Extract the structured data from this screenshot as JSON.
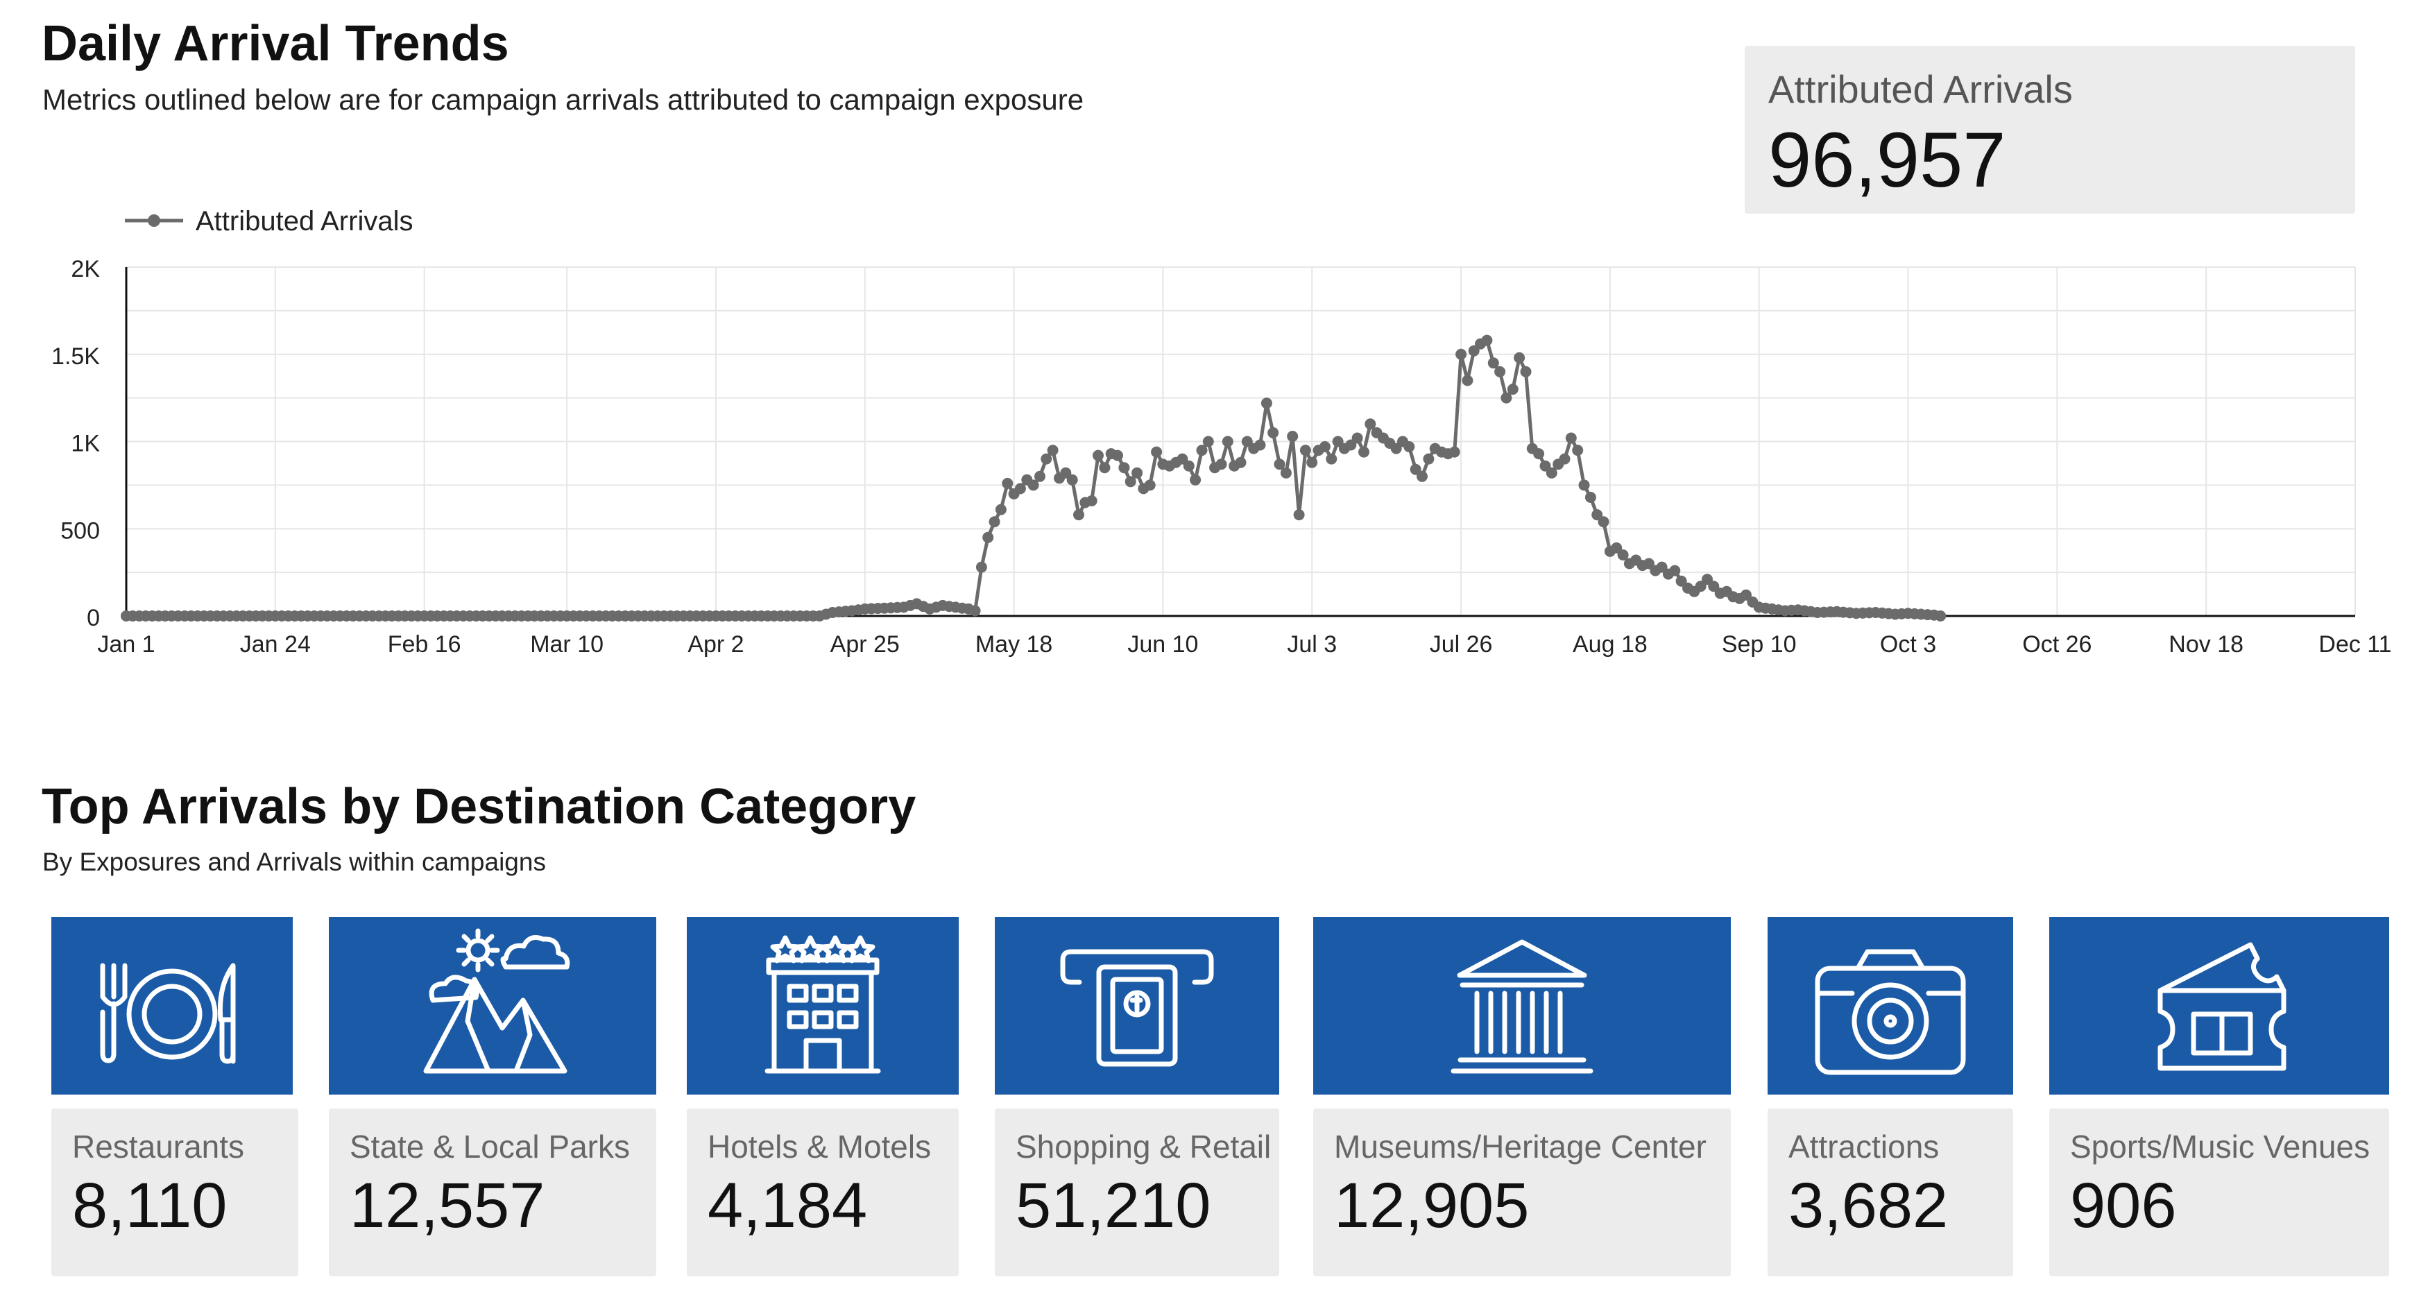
{
  "header": {
    "title": "Daily Arrival Trends",
    "subtitle": "Metrics outlined below are for campaign arrivals attributed to campaign exposure"
  },
  "kpi": {
    "label": "Attributed Arrivals",
    "value": "96,957"
  },
  "chart_data": {
    "type": "line",
    "legend": "top-left",
    "grid": true,
    "xlabel": "",
    "ylabel": "",
    "ylim": [
      0,
      2000
    ],
    "x_ticks": [
      "Jan 1",
      "Jan 24",
      "Feb 16",
      "Mar 10",
      "Apr 2",
      "Apr 25",
      "May 18",
      "Jun 10",
      "Jul 3",
      "Jul 26",
      "Aug 18",
      "Sep 10",
      "Oct 3",
      "Oct 26",
      "Nov 18",
      "Dec 11"
    ],
    "y_ticks": [
      "0",
      "500",
      "1K",
      "1.5K",
      "2K"
    ],
    "series": [
      {
        "name": "Attributed Arrivals",
        "color": "#6b6b6b",
        "points": [
          [
            "Jan 1",
            0
          ],
          [
            "Jan 24",
            0
          ],
          [
            "Feb 16",
            0
          ],
          [
            "Mar 10",
            0
          ],
          [
            "Apr 2",
            0
          ],
          [
            "Apr 18",
            0
          ],
          [
            "Apr 20",
            20
          ],
          [
            "Apr 23",
            30
          ],
          [
            "Apr 25",
            40
          ],
          [
            "Apr 28",
            45
          ],
          [
            "May 1",
            50
          ],
          [
            "May 3",
            70
          ],
          [
            "May 5",
            40
          ],
          [
            "May 7",
            60
          ],
          [
            "May 9",
            50
          ],
          [
            "May 11",
            40
          ],
          [
            "May 12",
            30
          ],
          [
            "May 13",
            280
          ],
          [
            "May 14",
            450
          ],
          [
            "May 15",
            540
          ],
          [
            "May 16",
            610
          ],
          [
            "May 17",
            760
          ],
          [
            "May 18",
            700
          ],
          [
            "May 19",
            730
          ],
          [
            "May 20",
            780
          ],
          [
            "May 21",
            750
          ],
          [
            "May 22",
            800
          ],
          [
            "May 23",
            900
          ],
          [
            "May 24",
            950
          ],
          [
            "May 25",
            790
          ],
          [
            "May 26",
            820
          ],
          [
            "May 27",
            780
          ],
          [
            "May 28",
            580
          ],
          [
            "May 29",
            650
          ],
          [
            "May 30",
            660
          ],
          [
            "May 31",
            920
          ],
          [
            "Jun 1",
            850
          ],
          [
            "Jun 2",
            930
          ],
          [
            "Jun 3",
            920
          ],
          [
            "Jun 4",
            850
          ],
          [
            "Jun 5",
            770
          ],
          [
            "Jun 6",
            820
          ],
          [
            "Jun 7",
            730
          ],
          [
            "Jun 8",
            750
          ],
          [
            "Jun 9",
            940
          ],
          [
            "Jun 10",
            870
          ],
          [
            "Jun 11",
            860
          ],
          [
            "Jun 12",
            880
          ],
          [
            "Jun 13",
            900
          ],
          [
            "Jun 14",
            860
          ],
          [
            "Jun 15",
            780
          ],
          [
            "Jun 16",
            950
          ],
          [
            "Jun 17",
            1000
          ],
          [
            "Jun 18",
            850
          ],
          [
            "Jun 19",
            870
          ],
          [
            "Jun 20",
            1000
          ],
          [
            "Jun 21",
            860
          ],
          [
            "Jun 22",
            880
          ],
          [
            "Jun 23",
            1000
          ],
          [
            "Jun 24",
            960
          ],
          [
            "Jun 25",
            980
          ],
          [
            "Jun 26",
            1220
          ],
          [
            "Jun 27",
            1050
          ],
          [
            "Jun 28",
            870
          ],
          [
            "Jun 29",
            820
          ],
          [
            "Jun 30",
            1030
          ],
          [
            "Jul 1",
            580
          ],
          [
            "Jul 2",
            950
          ],
          [
            "Jul 3",
            880
          ],
          [
            "Jul 4",
            950
          ],
          [
            "Jul 5",
            970
          ],
          [
            "Jul 6",
            900
          ],
          [
            "Jul 7",
            1000
          ],
          [
            "Jul 8",
            960
          ],
          [
            "Jul 9",
            980
          ],
          [
            "Jul 10",
            1020
          ],
          [
            "Jul 11",
            940
          ],
          [
            "Jul 12",
            1100
          ],
          [
            "Jul 13",
            1050
          ],
          [
            "Jul 14",
            1020
          ],
          [
            "Jul 15",
            990
          ],
          [
            "Jul 16",
            960
          ],
          [
            "Jul 17",
            1000
          ],
          [
            "Jul 18",
            970
          ],
          [
            "Jul 19",
            840
          ],
          [
            "Jul 20",
            800
          ],
          [
            "Jul 21",
            900
          ],
          [
            "Jul 22",
            960
          ],
          [
            "Jul 23",
            940
          ],
          [
            "Jul 24",
            930
          ],
          [
            "Jul 25",
            940
          ],
          [
            "Jul 26",
            1500
          ],
          [
            "Jul 27",
            1350
          ],
          [
            "Jul 28",
            1520
          ],
          [
            "Jul 29",
            1560
          ],
          [
            "Jul 30",
            1580
          ],
          [
            "Jul 31",
            1450
          ],
          [
            "Aug 1",
            1400
          ],
          [
            "Aug 2",
            1250
          ],
          [
            "Aug 3",
            1300
          ],
          [
            "Aug 4",
            1480
          ],
          [
            "Aug 5",
            1400
          ],
          [
            "Aug 6",
            960
          ],
          [
            "Aug 7",
            930
          ],
          [
            "Aug 8",
            860
          ],
          [
            "Aug 9",
            820
          ],
          [
            "Aug 10",
            870
          ],
          [
            "Aug 11",
            900
          ],
          [
            "Aug 12",
            1020
          ],
          [
            "Aug 13",
            950
          ],
          [
            "Aug 14",
            750
          ],
          [
            "Aug 15",
            680
          ],
          [
            "Aug 16",
            580
          ],
          [
            "Aug 17",
            540
          ],
          [
            "Aug 18",
            370
          ],
          [
            "Aug 19",
            390
          ],
          [
            "Aug 20",
            350
          ],
          [
            "Aug 21",
            300
          ],
          [
            "Aug 22",
            320
          ],
          [
            "Aug 23",
            290
          ],
          [
            "Aug 24",
            300
          ],
          [
            "Aug 25",
            260
          ],
          [
            "Aug 26",
            280
          ],
          [
            "Aug 27",
            240
          ],
          [
            "Aug 28",
            260
          ],
          [
            "Aug 29",
            200
          ],
          [
            "Aug 30",
            160
          ],
          [
            "Aug 31",
            140
          ],
          [
            "Sep 1",
            170
          ],
          [
            "Sep 2",
            210
          ],
          [
            "Sep 3",
            170
          ],
          [
            "Sep 4",
            130
          ],
          [
            "Sep 5",
            140
          ],
          [
            "Sep 6",
            110
          ],
          [
            "Sep 7",
            100
          ],
          [
            "Sep 8",
            120
          ],
          [
            "Sep 9",
            80
          ],
          [
            "Sep 10",
            50
          ],
          [
            "Sep 12",
            40
          ],
          [
            "Sep 14",
            30
          ],
          [
            "Sep 16",
            35
          ],
          [
            "Sep 19",
            20
          ],
          [
            "Sep 22",
            25
          ],
          [
            "Sep 25",
            15
          ],
          [
            "Sep 28",
            20
          ],
          [
            "Oct 1",
            10
          ],
          [
            "Oct 3",
            15
          ],
          [
            "Oct 5",
            10
          ],
          [
            "Oct 7",
            5
          ],
          [
            "Oct 8",
            0
          ]
        ]
      }
    ]
  },
  "categories_section": {
    "title": "Top Arrivals by Destination Category",
    "subtitle": "By Exposures and Arrivals within campaigns",
    "tiles": [
      {
        "label": "Restaurants",
        "value": "8,110",
        "icon": "plate-utensils-icon"
      },
      {
        "label": "State & Local Parks",
        "value": "12,557",
        "icon": "mountain-park-icon"
      },
      {
        "label": "Hotels & Motels",
        "value": "4,184",
        "icon": "hotel-building-icon"
      },
      {
        "label": "Shopping & Retail",
        "value": "51,210",
        "icon": "atm-cash-icon"
      },
      {
        "label": "Museums/Heritage Center",
        "value": "12,905",
        "icon": "museum-columns-icon"
      },
      {
        "label": "Attractions",
        "value": "3,682",
        "icon": "camera-icon"
      },
      {
        "label": "Sports/Music Venues",
        "value": "906",
        "icon": "ticket-venue-icon"
      }
    ]
  },
  "colors": {
    "tile_blue": "#1a5aa6",
    "card_gray": "#ececec",
    "line_gray": "#6b6b6b"
  }
}
